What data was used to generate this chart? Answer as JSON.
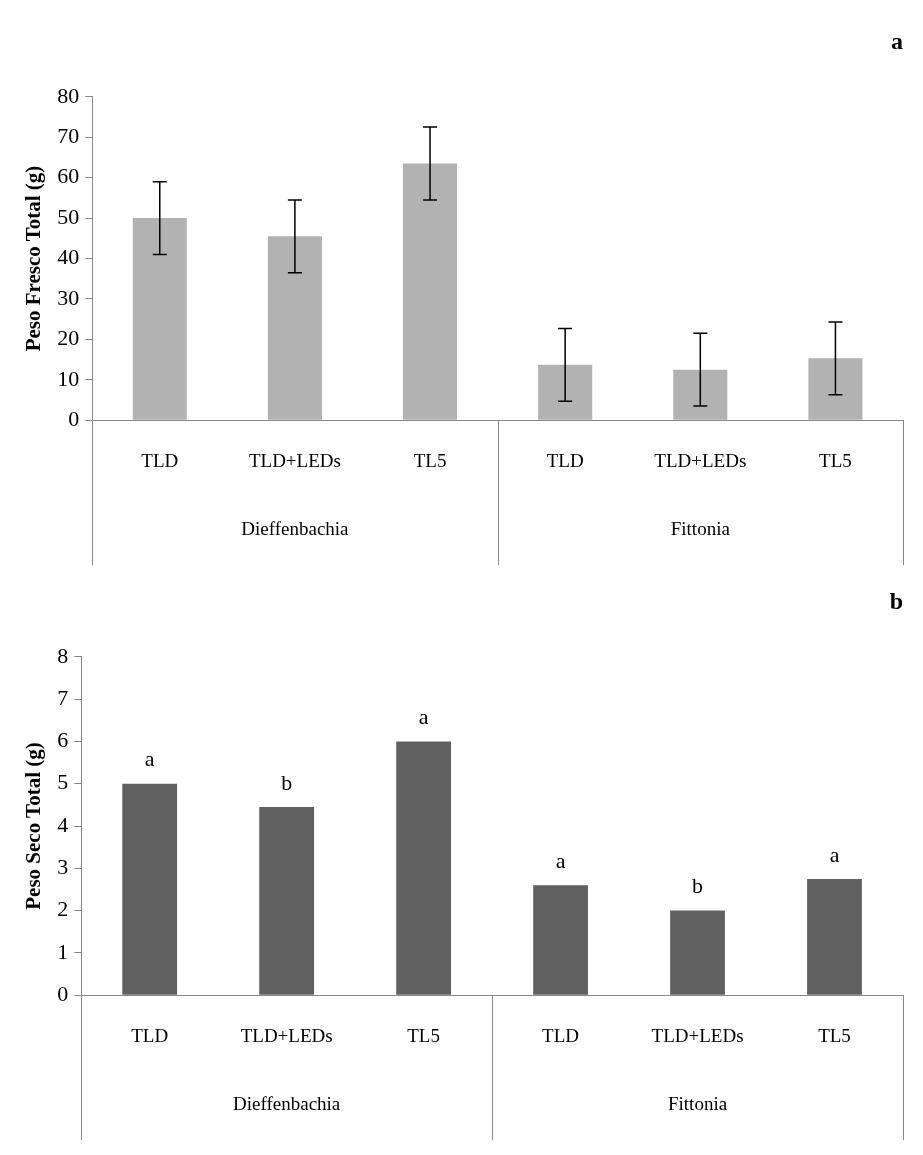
{
  "chart_data": [
    {
      "type": "bar",
      "title": "a",
      "ylabel": "Peso Fresco Total (g)",
      "categories": [
        "TLD",
        "TLD+LEDs",
        "TL5",
        "TLD",
        "TLD+LEDs",
        "TL5"
      ],
      "values": [
        50,
        45.5,
        63.5,
        13.7,
        12.5,
        15.3
      ],
      "errors": [
        9,
        9,
        9,
        9,
        9,
        9
      ],
      "color": "#b2b2b2",
      "ylim": [
        0,
        80
      ],
      "yticks": [
        0,
        10,
        20,
        30,
        40,
        50,
        60,
        70,
        80
      ],
      "grid": false,
      "legend": false,
      "annotations": [
        "Dieffenbachia",
        "Fittonia"
      ]
    },
    {
      "type": "bar",
      "title": "b",
      "ylabel": "Peso Seco Total (g)",
      "categories": [
        "TLD",
        "TLD+LEDs",
        "TL5",
        "TLD",
        "TLD+LEDs",
        "TL5"
      ],
      "values": [
        5,
        4.45,
        6,
        2.6,
        2,
        2.75
      ],
      "value_labels": [
        "a",
        "b",
        "a",
        "a",
        "b",
        "a"
      ],
      "color": "#606060",
      "ylim": [
        0,
        8
      ],
      "yticks": [
        0,
        1,
        2,
        3,
        4,
        5,
        6,
        7,
        8
      ],
      "grid": false,
      "legend": false,
      "annotations": [
        "Dieffenbachia",
        "Fittonia"
      ]
    }
  ]
}
